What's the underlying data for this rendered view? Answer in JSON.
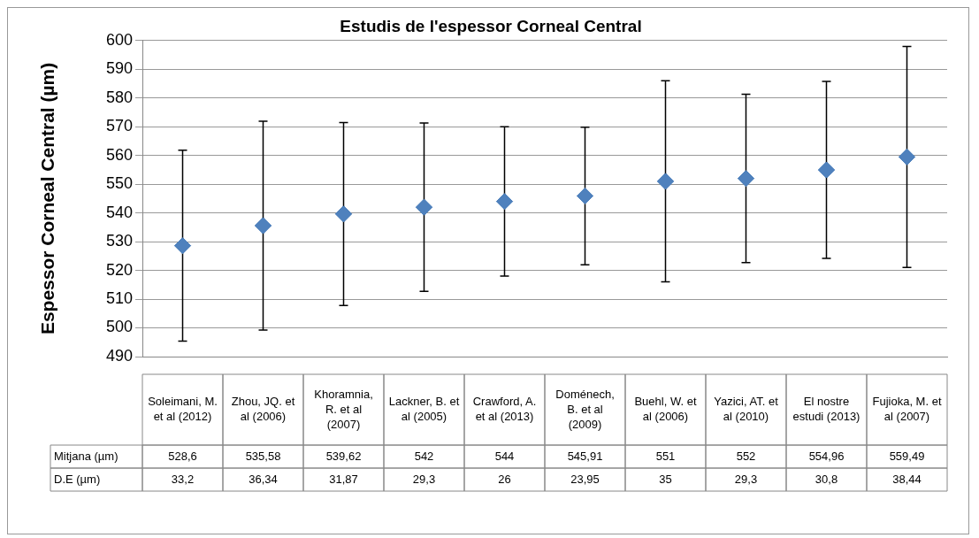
{
  "chart_data": {
    "type": "scatter",
    "title": "Estudis de l'espessor Corneal Central",
    "ylabel": "Espessor Corneal Central (µm)",
    "categories": [
      "Soleimani, M. et al (2012)",
      "Zhou, JQ. et al (2006)",
      "Khoramnia, R. et al (2007)",
      "Lackner, B. et al (2005)",
      "Crawford, A. et al (2013)",
      "Doménech, B. et al (2009)",
      "Buehl, W. et al (2006)",
      "Yazici, AT. et al (2010)",
      "El nostre estudi (2013)",
      "Fujioka, M. et al (2007)"
    ],
    "series": [
      {
        "name": "Mitjana (µm)",
        "color": "#4f81bd",
        "values": [
          528.6,
          535.58,
          539.62,
          542,
          544,
          545.91,
          551,
          552,
          554.96,
          559.49
        ],
        "value_labels": [
          "528,6",
          "535,58",
          "539,62",
          "542",
          "544",
          "545,91",
          "551",
          "552",
          "554,96",
          "559,49"
        ],
        "errors": [
          33.2,
          36.34,
          31.87,
          29.3,
          26,
          23.95,
          35,
          29.3,
          30.8,
          38.44
        ]
      }
    ],
    "ylim": [
      490,
      600
    ],
    "yticks": [
      490,
      500,
      510,
      520,
      530,
      540,
      550,
      560,
      570,
      580,
      590,
      600
    ],
    "grid": "y",
    "legend": false,
    "marker": "diamond",
    "annotations": [
      "D.E (µm)",
      "33,2",
      "36,34",
      "31,87",
      "29,3",
      "26",
      "23,95",
      "35",
      "29,3",
      "30,8",
      "38,44"
    ]
  }
}
